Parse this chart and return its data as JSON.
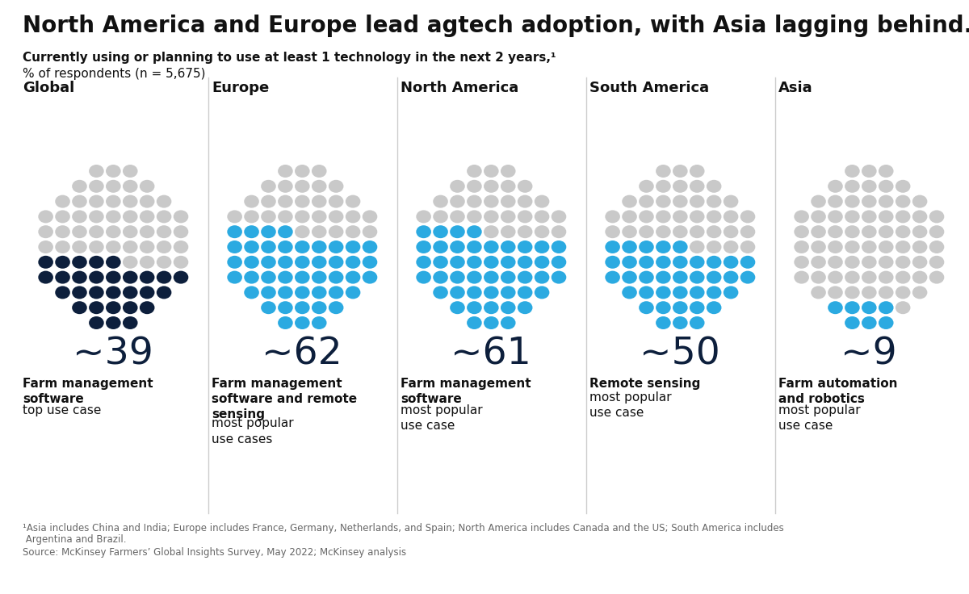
{
  "title": "North America and Europe lead agtech adoption, with Asia lagging behind.",
  "subtitle": "Currently using or planning to use at least 1 technology in the next 2 years,¹",
  "subtitle2": "% of respondents (n = 5,675)",
  "footnote1": "¹Asia includes China and India; Europe includes France, Germany, Netherlands, and Spain; North America includes Canada and the US; South America includes",
  "footnote1b": " Argentina and Brazil.",
  "footnote2": "Source: McKinsey Farmers’ Global Insights Survey, May 2022; McKinsey analysis",
  "regions": [
    "Global",
    "Europe",
    "North America",
    "South America",
    "Asia"
  ],
  "values": [
    39,
    62,
    61,
    50,
    9
  ],
  "value_labels": [
    "~39",
    "~62",
    "~61",
    "~50",
    "~9"
  ],
  "highlight_colors": [
    "#0d1f3c",
    "#2baae1",
    "#2baae1",
    "#2baae1",
    "#2baae1"
  ],
  "gray_color": "#c9c9c9",
  "background_color": "#ffffff",
  "bold_texts": [
    "Farm management\nsoftware",
    "Farm management\nsoftware and remote\nsensing",
    "Farm management\nsoftware",
    "Remote sensing",
    "Farm automation\nand robotics"
  ],
  "normal_texts": [
    "top use case",
    "most popular\nuse cases",
    "most popular\nuse case",
    "most popular\nuse case",
    "most popular\nuse case"
  ],
  "value_color": "#0d1f3c",
  "divider_color": "#cccccc",
  "text_color": "#111111",
  "footnote_color": "#666666"
}
